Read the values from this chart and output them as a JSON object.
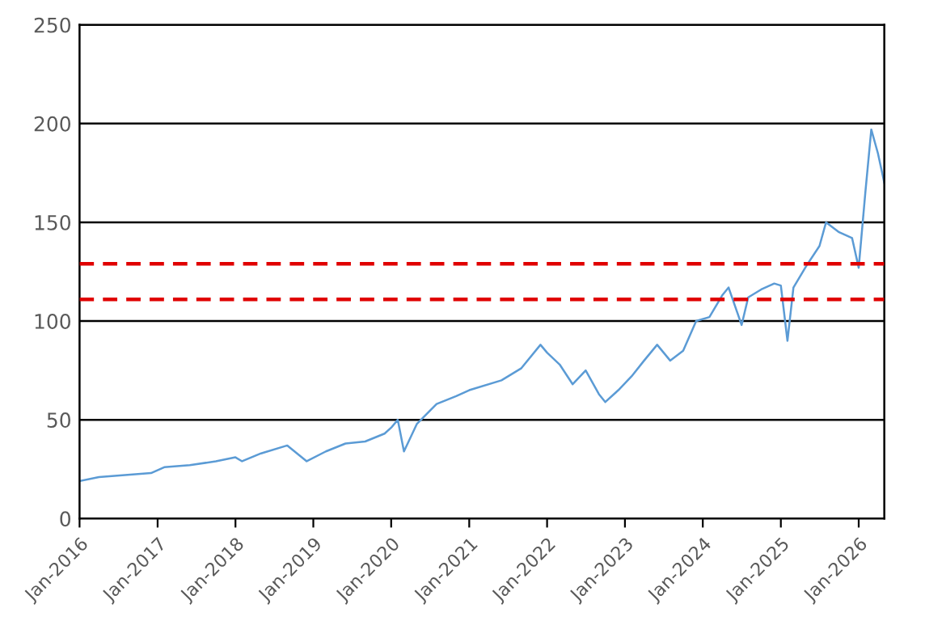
{
  "chart_data": {
    "type": "line",
    "x": [
      "2016-01",
      "2016-04",
      "2016-08",
      "2016-12",
      "2017-02",
      "2017-06",
      "2017-10",
      "2018-01",
      "2018-02",
      "2018-05",
      "2018-09",
      "2018-12",
      "2019-03",
      "2019-06",
      "2019-09",
      "2019-12",
      "2020-01",
      "2020-02",
      "2020-03",
      "2020-05",
      "2020-08",
      "2020-11",
      "2021-01",
      "2021-06",
      "2021-09",
      "2021-12",
      "2022-01",
      "2022-03",
      "2022-05",
      "2022-07",
      "2022-09",
      "2022-10",
      "2022-12",
      "2023-02",
      "2023-04",
      "2023-06",
      "2023-08",
      "2023-10",
      "2023-12",
      "2024-02",
      "2024-04",
      "2024-05",
      "2024-07",
      "2024-08",
      "2024-10",
      "2024-12",
      "2025-01",
      "2025-02",
      "2025-03",
      "2025-05",
      "2025-07",
      "2025-08",
      "2025-10",
      "2025-12",
      "2026-01",
      "2026-02",
      "2026-03",
      "2026-04",
      "2026-05"
    ],
    "series": [
      {
        "color": "#5b9bd5",
        "values": [
          19,
          21,
          22,
          23,
          26,
          27,
          29,
          31,
          29,
          33,
          37,
          29,
          34,
          38,
          39,
          43,
          46,
          50,
          34,
          48,
          58,
          62,
          65,
          70,
          76,
          88,
          84,
          78,
          68,
          75,
          63,
          59,
          65,
          72,
          80,
          88,
          80,
          85,
          100,
          102,
          113,
          117,
          98,
          112,
          116,
          119,
          118,
          90,
          117,
          128,
          138,
          150,
          145,
          142,
          127,
          165,
          197,
          185,
          170
        ]
      }
    ],
    "xlim": [
      "2016-01",
      "2026-05"
    ],
    "xticks": [
      {
        "value": "2016-01",
        "label": "Jan-2016"
      },
      {
        "value": "2017-01",
        "label": "Jan-2017"
      },
      {
        "value": "2018-01",
        "label": "Jan-2018"
      },
      {
        "value": "2019-01",
        "label": "Jan-2019"
      },
      {
        "value": "2020-01",
        "label": "Jan-2020"
      },
      {
        "value": "2021-01",
        "label": "Jan-2021"
      },
      {
        "value": "2022-01",
        "label": "Jan-2022"
      },
      {
        "value": "2023-01",
        "label": "Jan-2023"
      },
      {
        "value": "2024-01",
        "label": "Jan-2024"
      },
      {
        "value": "2025-01",
        "label": "Jan-2025"
      },
      {
        "value": "2026-01",
        "label": "Jan-2026"
      }
    ],
    "ylim": [
      0,
      250
    ],
    "yticks": [
      0,
      50,
      100,
      150,
      200,
      250
    ],
    "grid": "y",
    "ref_lines": [
      {
        "axis": "y",
        "value": 129,
        "color": "#e00000",
        "line_style": "dashed"
      },
      {
        "axis": "y",
        "value": 111,
        "color": "#e00000",
        "line_style": "dashed"
      }
    ]
  }
}
